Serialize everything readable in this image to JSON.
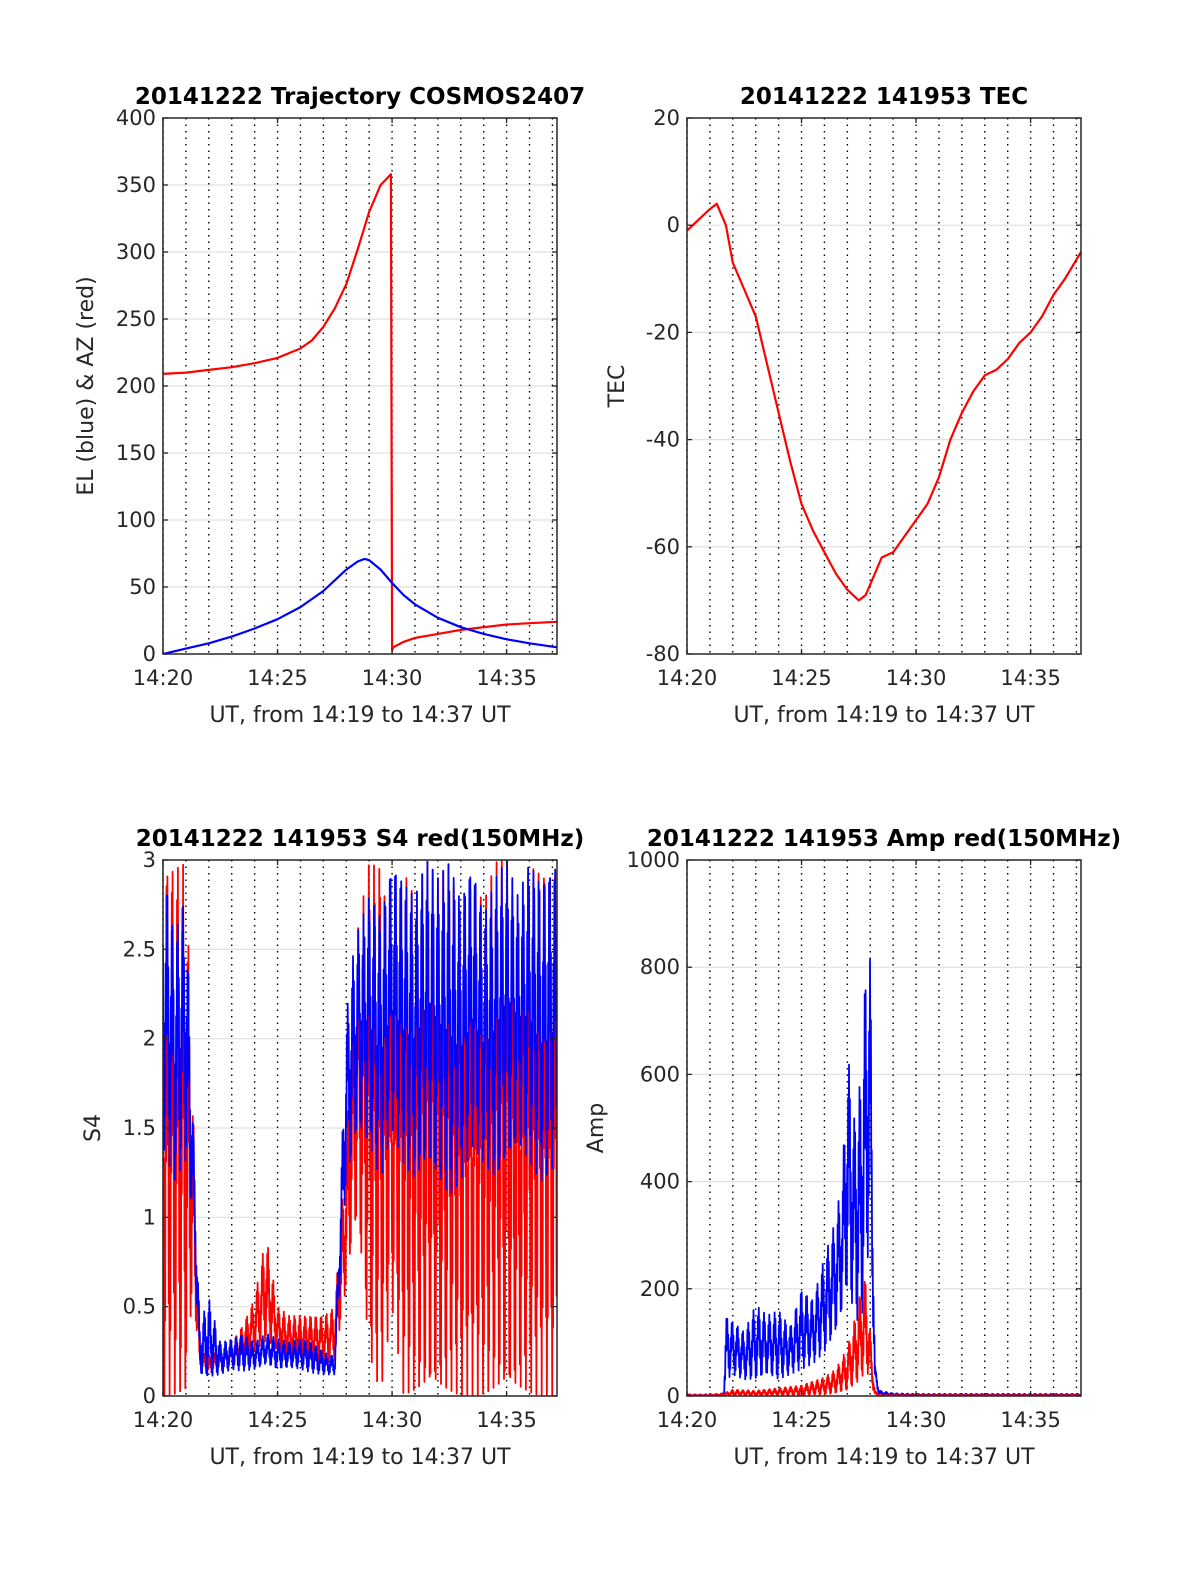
{
  "figure": {
    "background": "#ffffff",
    "grid_color": "#e0e0e0",
    "minor_grid_color": "#000000"
  },
  "chart_data": [
    {
      "id": "traj",
      "type": "line",
      "title": "20141222 Trajectory COSMOS2407",
      "xlabel": "UT, from 14:19 to 14:37 UT",
      "ylabel": "EL (blue) & AZ (red)",
      "xlim": [
        0,
        17.2
      ],
      "ylim": [
        0,
        400
      ],
      "xticks": [
        0,
        5,
        10,
        15
      ],
      "xtick_labels": [
        "14:20",
        "14:25",
        "14:30",
        "14:35"
      ],
      "yticks": [
        0,
        50,
        100,
        150,
        200,
        250,
        300,
        350,
        400
      ],
      "ytick_labels": [
        "0",
        "50",
        "100",
        "150",
        "200",
        "250",
        "300",
        "350",
        "400"
      ],
      "x_unit": "minutes after 14:20 UT",
      "grid": true,
      "minor_x_grid": true,
      "series": [
        {
          "color": "#ff0000",
          "mode": "line",
          "x": [
            0,
            1,
            2,
            3,
            4,
            5,
            6,
            6.5,
            7,
            7.5,
            8,
            8.5,
            9,
            9.5,
            9.95,
            10.0,
            10.05,
            10.5,
            11,
            12,
            13,
            14,
            15,
            16,
            17.2
          ],
          "y": [
            209,
            210,
            212,
            214,
            217,
            221,
            228,
            234,
            244,
            258,
            276,
            302,
            330,
            350,
            358,
            3,
            5,
            9,
            12,
            15,
            18,
            20,
            22,
            23,
            24
          ]
        },
        {
          "color": "#0000ff",
          "mode": "line",
          "x": [
            0,
            1,
            2,
            3,
            4,
            5,
            6,
            7,
            7.5,
            8,
            8.5,
            8.8,
            9,
            9.5,
            10,
            10.5,
            11,
            12,
            13,
            14,
            15,
            16,
            17.2
          ],
          "y": [
            0,
            4,
            8,
            13,
            19,
            26,
            35,
            47,
            55,
            63,
            69,
            71,
            70,
            63,
            53,
            44,
            37,
            27,
            20,
            15,
            11,
            8,
            5
          ]
        }
      ]
    },
    {
      "id": "tec",
      "type": "line",
      "title": "20141222 141953 TEC",
      "xlabel": "UT, from 14:19 to 14:37 UT",
      "ylabel": "TEC",
      "xlim": [
        0,
        17.2
      ],
      "ylim": [
        -80,
        20
      ],
      "xticks": [
        0,
        5,
        10,
        15
      ],
      "xtick_labels": [
        "14:20",
        "14:25",
        "14:30",
        "14:35"
      ],
      "yticks": [
        -80,
        -60,
        -40,
        -20,
        0,
        20
      ],
      "ytick_labels": [
        "-80",
        "-60",
        "-40",
        "-20",
        "0",
        "20"
      ],
      "x_unit": "minutes after 14:20 UT",
      "grid": true,
      "minor_x_grid": true,
      "series": [
        {
          "color": "#ff0000",
          "mode": "line",
          "x": [
            0,
            0.5,
            1,
            1.3,
            1.7,
            2,
            2.5,
            3,
            3.5,
            4,
            4.5,
            5,
            5.5,
            6,
            6.5,
            7,
            7.5,
            7.8,
            8,
            8.5,
            9,
            9.5,
            10,
            10.5,
            11,
            11.5,
            12,
            12.5,
            13,
            13.5,
            14,
            14.5,
            15,
            15.5,
            16,
            16.5,
            17.2
          ],
          "y": [
            -1,
            1,
            3,
            4,
            0,
            -7,
            -12,
            -17,
            -26,
            -35,
            -44,
            -52,
            -57,
            -61,
            -65,
            -68,
            -70,
            -69,
            -67,
            -62,
            -61,
            -58,
            -55,
            -52,
            -47,
            -40,
            -35,
            -31,
            -28,
            -27,
            -25,
            -22,
            -20,
            -17,
            -13,
            -10,
            -5
          ]
        }
      ]
    },
    {
      "id": "s4",
      "type": "line",
      "title": "20141222 141953 S4 red(150MHz)",
      "xlabel": "UT, from 14:19 to 14:37 UT",
      "ylabel": "S4",
      "xlim": [
        0,
        17.2
      ],
      "ylim": [
        0,
        3
      ],
      "xticks": [
        0,
        5,
        10,
        15
      ],
      "xtick_labels": [
        "14:20",
        "14:25",
        "14:30",
        "14:35"
      ],
      "yticks": [
        0,
        0.5,
        1,
        1.5,
        2,
        2.5,
        3
      ],
      "ytick_labels": [
        "0",
        "0.5",
        "1",
        "1.5",
        "2",
        "2.5",
        "3"
      ],
      "x_unit": "minutes after 14:20 UT",
      "grid": true,
      "minor_x_grid": true,
      "series": [
        {
          "color": "#ff0000",
          "mode": "band",
          "x": [
            0,
            0.5,
            1,
            1.3,
            1.6,
            2,
            2.5,
            3,
            3.5,
            4,
            4.5,
            5,
            5.5,
            6,
            6.5,
            7,
            7.5,
            8,
            8.2,
            8.5,
            9,
            9.5,
            10,
            10.5,
            11,
            11.5,
            12,
            12.5,
            13,
            13.5,
            14,
            14.5,
            15,
            15.5,
            16,
            16.5,
            17.2
          ],
          "low": [
            0.0,
            0.0,
            0.0,
            0.6,
            0.15,
            0.12,
            0.14,
            0.16,
            0.2,
            0.25,
            0.3,
            0.25,
            0.2,
            0.2,
            0.2,
            0.18,
            0.2,
            0.6,
            0.8,
            1.0,
            0.2,
            0.0,
            0.5,
            0.0,
            0.0,
            0.0,
            0.0,
            0.0,
            0.0,
            0.0,
            0.0,
            0.0,
            0.0,
            0.0,
            0.0,
            0.0,
            0.0
          ],
          "high": [
            3.0,
            3.0,
            3.0,
            1.7,
            0.25,
            0.22,
            0.26,
            0.3,
            0.4,
            0.55,
            0.9,
            0.5,
            0.45,
            0.45,
            0.45,
            0.45,
            0.5,
            1.4,
            2.0,
            2.6,
            3.0,
            3.0,
            2.6,
            3.0,
            2.8,
            3.0,
            2.9,
            3.0,
            2.7,
            3.0,
            2.8,
            3.0,
            3.0,
            2.6,
            3.0,
            3.0,
            3.0
          ]
        },
        {
          "color": "#0000ff",
          "mode": "band",
          "x": [
            0,
            0.5,
            1,
            1.3,
            1.6,
            2,
            2.5,
            3,
            3.5,
            4,
            4.5,
            5,
            5.5,
            6,
            6.5,
            7,
            7.5,
            8,
            8.2,
            8.5,
            9,
            9.5,
            10,
            10.5,
            11,
            11.5,
            12,
            12.5,
            13,
            13.5,
            14,
            14.5,
            15,
            15.5,
            16,
            16.5,
            17.2
          ],
          "low": [
            1.4,
            1.2,
            1.3,
            1.0,
            0.12,
            0.1,
            0.12,
            0.15,
            0.14,
            0.15,
            0.18,
            0.15,
            0.16,
            0.15,
            0.13,
            0.12,
            0.12,
            1.2,
            1.3,
            1.5,
            1.4,
            1.2,
            1.5,
            1.3,
            1.2,
            1.3,
            1.2,
            1.1,
            1.2,
            1.4,
            1.3,
            1.2,
            1.3,
            1.4,
            1.3,
            1.2,
            1.3
          ],
          "high": [
            3.0,
            2.6,
            2.8,
            1.6,
            0.4,
            0.55,
            0.3,
            0.32,
            0.35,
            0.3,
            0.35,
            0.32,
            0.3,
            0.32,
            0.3,
            0.25,
            0.22,
            2.1,
            2.4,
            2.6,
            2.8,
            2.7,
            3.0,
            2.9,
            2.8,
            3.0,
            2.9,
            3.0,
            2.8,
            3.0,
            2.7,
            2.9,
            3.0,
            2.8,
            3.0,
            2.9,
            3.0
          ]
        }
      ]
    },
    {
      "id": "amp",
      "type": "line",
      "title": "20141222 141953 Amp red(150MHz)",
      "xlabel": "UT, from 14:19 to 14:37 UT",
      "ylabel": "Amp",
      "xlim": [
        0,
        17.2
      ],
      "ylim": [
        0,
        1000
      ],
      "xticks": [
        0,
        5,
        10,
        15
      ],
      "xtick_labels": [
        "14:20",
        "14:25",
        "14:30",
        "14:35"
      ],
      "yticks": [
        0,
        200,
        400,
        600,
        800,
        1000
      ],
      "ytick_labels": [
        "0",
        "200",
        "400",
        "600",
        "800",
        "1000"
      ],
      "x_unit": "minutes after 14:20 UT",
      "grid": true,
      "minor_x_grid": true,
      "series": [
        {
          "color": "#0000ff",
          "mode": "band",
          "x": [
            0,
            1,
            1.6,
            1.7,
            2,
            2.5,
            3,
            3.5,
            4,
            4.5,
            5,
            5.5,
            6,
            6.5,
            6.8,
            7,
            7.3,
            7.6,
            7.8,
            8.0,
            8.2,
            8.4,
            9,
            10,
            12,
            14,
            16,
            17.2
          ],
          "low": [
            0,
            0,
            0,
            30,
            40,
            30,
            30,
            40,
            30,
            40,
            50,
            60,
            80,
            120,
            160,
            200,
            150,
            120,
            220,
            300,
            20,
            2,
            0,
            0,
            0,
            0,
            0,
            0
          ],
          "high": [
            3,
            3,
            5,
            150,
            140,
            120,
            170,
            150,
            160,
            130,
            200,
            180,
            260,
            330,
            420,
            650,
            520,
            600,
            800,
            830,
            60,
            10,
            5,
            4,
            4,
            4,
            4,
            4
          ]
        },
        {
          "color": "#ff0000",
          "mode": "band",
          "x": [
            0,
            1,
            1.6,
            2,
            3,
            4,
            5,
            6,
            6.5,
            7,
            7.3,
            7.6,
            7.8,
            8.0,
            8.2,
            8.4,
            9,
            12,
            17.2
          ],
          "low": [
            0,
            0,
            0,
            0,
            0,
            0,
            0,
            2,
            5,
            10,
            20,
            30,
            50,
            30,
            0,
            0,
            0,
            0,
            0
          ],
          "high": [
            2,
            2,
            5,
            12,
            10,
            15,
            20,
            35,
            50,
            90,
            140,
            200,
            220,
            120,
            10,
            2,
            2,
            2,
            2
          ]
        }
      ]
    }
  ]
}
